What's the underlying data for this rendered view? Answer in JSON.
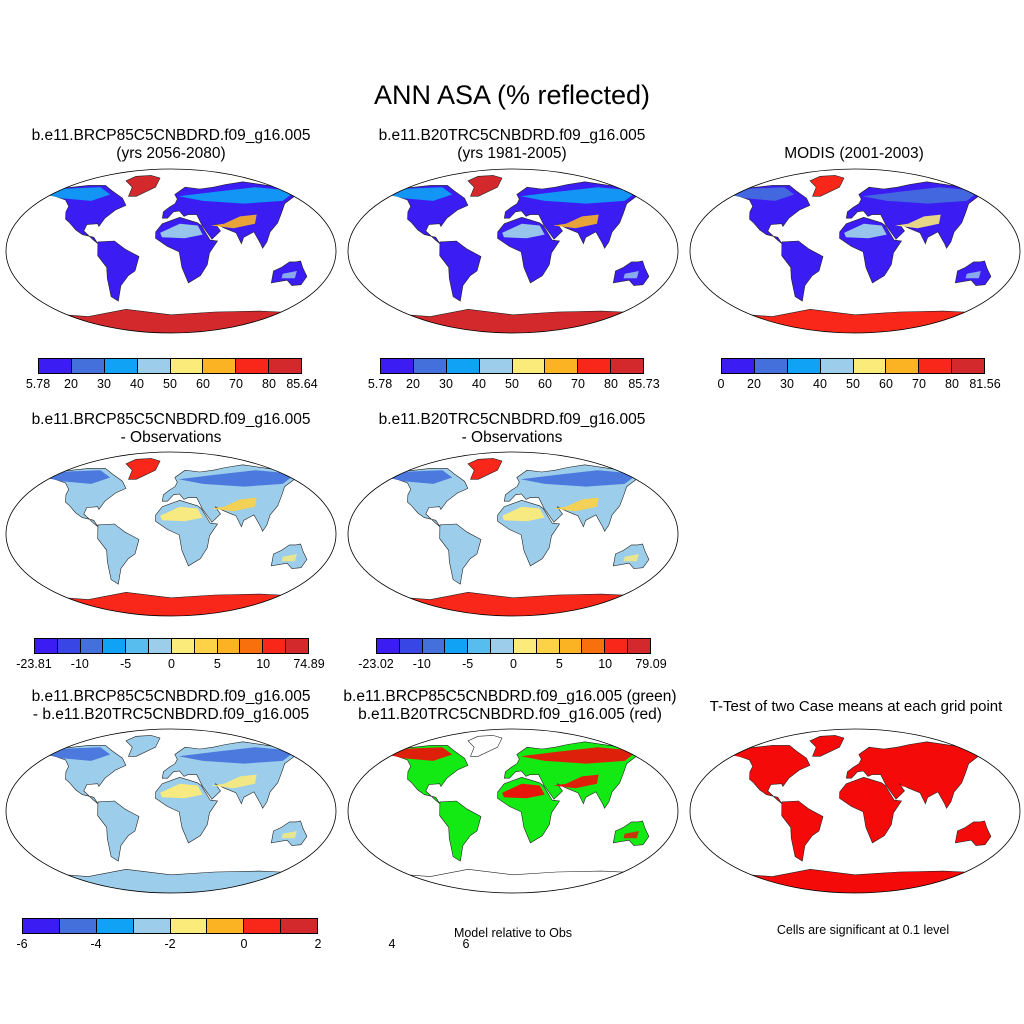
{
  "title": "ANN ASA (% reflected)",
  "colors": {
    "seq": [
      "#3b1cf2",
      "#4470dc",
      "#10a3f5",
      "#9ccdea",
      "#fbeb7a",
      "#fbb324",
      "#f8271a",
      "#d3292c"
    ],
    "diff": [
      "#3b1cf2",
      "#3946e6",
      "#4470dc",
      "#10a3f5",
      "#57bdee",
      "#9ccdea",
      "#fbeb7a",
      "#fdd246",
      "#fbb324",
      "#f8700d",
      "#f8271a",
      "#d3292c"
    ],
    "anom": [
      "#3b1cf2",
      "#4470dc",
      "#10a3f5",
      "#9ccdea",
      "#fbeb7a",
      "#fbb324",
      "#f8271a",
      "#d3292c"
    ],
    "green": "#13ea13",
    "red": "#f50a0a"
  },
  "panels": [
    {
      "id": "p1",
      "title_line1": "b.e11.BRCP85C5CNBDRD.f09_g16.005",
      "title_line2": "(yrs 2056-2080)",
      "colorbar": {
        "palette": "seq",
        "ticks": [
          "5.78",
          "20",
          "30",
          "40",
          "50",
          "60",
          "70",
          "80",
          "85.64"
        ]
      }
    },
    {
      "id": "p2",
      "title_line1": "b.e11.B20TRC5CNBDRD.f09_g16.005",
      "title_line2": "(yrs 1981-2005)",
      "colorbar": {
        "palette": "seq",
        "ticks": [
          "5.78",
          "20",
          "30",
          "40",
          "50",
          "60",
          "70",
          "80",
          "85.73"
        ]
      }
    },
    {
      "id": "p3",
      "title_line1": "MODIS (2001-2003)",
      "title_line2": "",
      "colorbar": {
        "palette": "seq",
        "ticks": [
          "0",
          "20",
          "30",
          "40",
          "50",
          "60",
          "70",
          "80",
          "81.56"
        ]
      }
    },
    {
      "id": "p4",
      "title_line1": "b.e11.BRCP85C5CNBDRD.f09_g16.005",
      "title_line2": "- Observations",
      "colorbar": {
        "palette": "diff",
        "ticks": [
          "-23.81",
          "-10",
          "-5",
          "0",
          "5",
          "10",
          "74.89"
        ]
      }
    },
    {
      "id": "p5",
      "title_line1": "b.e11.B20TRC5CNBDRD.f09_g16.005",
      "title_line2": "- Observations",
      "colorbar": {
        "palette": "diff",
        "ticks": [
          "-23.02",
          "-10",
          "-5",
          "0",
          "5",
          "10",
          "79.09"
        ]
      }
    },
    {
      "id": "p6",
      "title_line1": "b.e11.BRCP85C5CNBDRD.f09_g16.005",
      "title_line2": "- b.e11.B20TRC5CNBDRD.f09_g16.005",
      "colorbar": {
        "palette": "anom",
        "ticks": [
          "-6",
          "-4",
          "-2",
          "0",
          "2",
          "4",
          "6"
        ]
      }
    },
    {
      "id": "p7",
      "title_line1": "b.e11.BRCP85C5CNBDRD.f09_g16.005 (green)",
      "title_line2": "b.e11.B20TRC5CNBDRD.f09_g16.005 (red)",
      "note": "Model relative to Obs"
    },
    {
      "id": "p8",
      "title_line1": "T-Test of two Case means at each grid point",
      "title_line2": "",
      "note": "Cells are significant at 0.1 level"
    }
  ]
}
